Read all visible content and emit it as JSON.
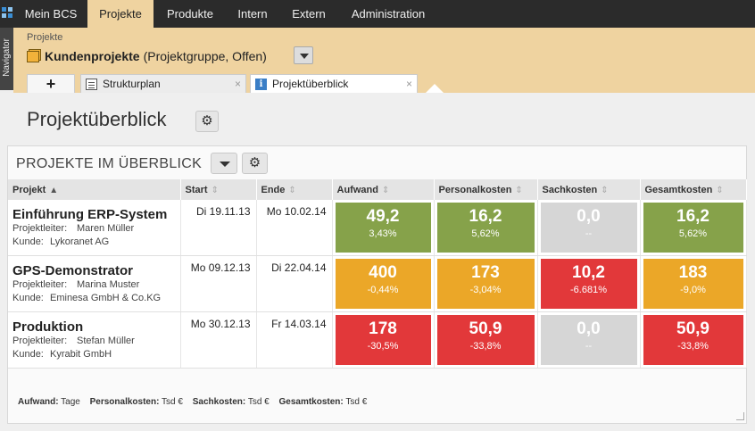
{
  "topnav": {
    "items": [
      "Mein BCS",
      "Projekte",
      "Produkte",
      "Intern",
      "Extern",
      "Administration"
    ]
  },
  "navigator_label": "Navigator",
  "header": {
    "breadcrumb": "Projekte",
    "project_name": "Kundenprojekte",
    "project_sub": "(Projektgruppe, Offen)"
  },
  "tabs": {
    "add_label": "+",
    "items": [
      {
        "label": "Strukturplan",
        "close": "×"
      },
      {
        "label": "Projektüberblick",
        "close": "×"
      }
    ]
  },
  "page": {
    "title": "Projektüberblick",
    "gear_glyph": "⚙"
  },
  "panel": {
    "title": "PROJEKTE IM ÜBERBLICK",
    "gear_glyph": "⚙"
  },
  "table": {
    "headers": [
      "Projekt",
      "Start",
      "Ende",
      "Aufwand",
      "Personalkosten",
      "Sachkosten",
      "Gesamtkosten"
    ],
    "leiter_key": "Projektleiter:",
    "kunde_key": "Kunde:",
    "rows": [
      {
        "name": "Einführung ERP-System",
        "leiter": "Maren Müller",
        "kunde": "Lykoranet AG",
        "start": "Di 19.11.13",
        "ende": "Mo 10.02.14",
        "aufwand": {
          "value": "49,2",
          "pct": "3,43%",
          "status": "green"
        },
        "personal": {
          "value": "16,2",
          "pct": "5,62%",
          "status": "green"
        },
        "sach": {
          "value": "0,0",
          "pct": "--",
          "status": "grey"
        },
        "gesamt": {
          "value": "16,2",
          "pct": "5,62%",
          "status": "green"
        }
      },
      {
        "name": "GPS-Demonstrator",
        "leiter": "Marina Muster",
        "kunde": "Eminesa GmbH & Co.KG",
        "start": "Mo 09.12.13",
        "ende": "Di 22.04.14",
        "aufwand": {
          "value": "400",
          "pct": "-0,44%",
          "status": "orange"
        },
        "personal": {
          "value": "173",
          "pct": "-3,04%",
          "status": "orange"
        },
        "sach": {
          "value": "10,2",
          "pct": "-6.681%",
          "status": "red"
        },
        "gesamt": {
          "value": "183",
          "pct": "-9,0%",
          "status": "orange"
        }
      },
      {
        "name": "Produktion",
        "leiter": "Stefan Müller",
        "kunde": "Kyrabit GmbH",
        "start": "Mo 30.12.13",
        "ende": "Fr 14.03.14",
        "aufwand": {
          "value": "178",
          "pct": "-30,5%",
          "status": "red"
        },
        "personal": {
          "value": "50,9",
          "pct": "-33,8%",
          "status": "red"
        },
        "sach": {
          "value": "0,0",
          "pct": "--",
          "status": "grey"
        },
        "gesamt": {
          "value": "50,9",
          "pct": "-33,8%",
          "status": "red"
        }
      }
    ]
  },
  "legend": [
    {
      "key": "Aufwand:",
      "unit": "Tage"
    },
    {
      "key": "Personalkosten:",
      "unit": "Tsd €"
    },
    {
      "key": "Sachkosten:",
      "unit": "Tsd €"
    },
    {
      "key": "Gesamtkosten:",
      "unit": "Tsd €"
    }
  ],
  "colors": {
    "green": "#86a24a",
    "orange": "#eba728",
    "red": "#e2383a",
    "grey": "#d6d6d6",
    "header_band": "#efd3a0",
    "topnav": "#2b2b2b"
  }
}
